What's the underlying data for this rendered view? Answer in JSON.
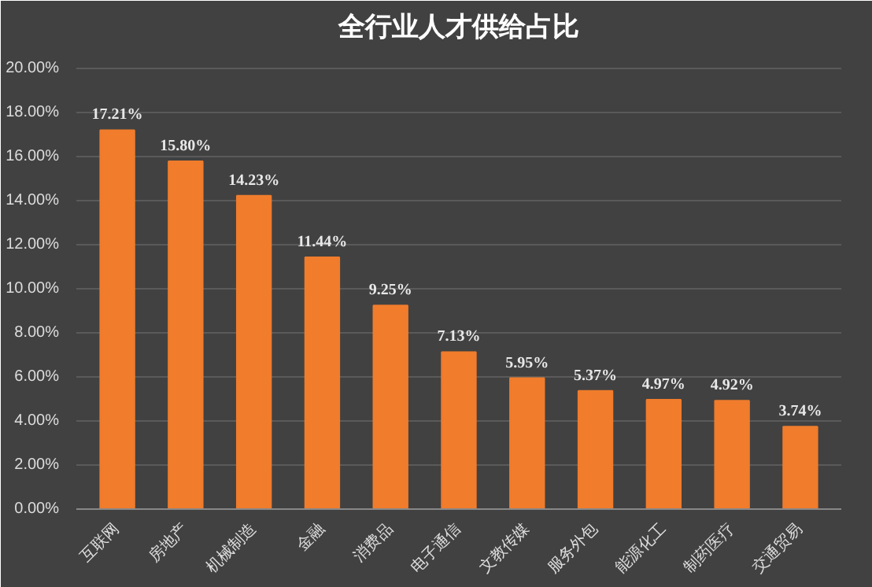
{
  "chart_data": {
    "type": "bar",
    "title": "全行业人才供给占比",
    "categories": [
      "互联网",
      "房地产",
      "机械制造",
      "金融",
      "消费品",
      "电子通信",
      "文教传媒",
      "服务外包",
      "能源化工",
      "制药医疗",
      "交通贸易"
    ],
    "values": [
      17.21,
      15.8,
      14.23,
      11.44,
      9.25,
      7.13,
      5.95,
      5.37,
      4.97,
      4.92,
      3.74
    ],
    "value_labels": [
      "17.21%",
      "15.80%",
      "14.23%",
      "11.44%",
      "9.25%",
      "7.13%",
      "5.95%",
      "5.37%",
      "4.97%",
      "4.92%",
      "3.74%"
    ],
    "color": "#f07c2c",
    "ylim": [
      0,
      20
    ],
    "yticks": [
      {
        "value": 0,
        "label": "0.00%"
      },
      {
        "value": 2,
        "label": "2.00%"
      },
      {
        "value": 4,
        "label": "4.00%"
      },
      {
        "value": 6,
        "label": "6.00%"
      },
      {
        "value": 8,
        "label": "8.00%"
      },
      {
        "value": 10,
        "label": "10.00%"
      },
      {
        "value": 12,
        "label": "12.00%"
      },
      {
        "value": 14,
        "label": "14.00%"
      },
      {
        "value": 16,
        "label": "16.00%"
      },
      {
        "value": 18,
        "label": "18.00%"
      },
      {
        "value": 20,
        "label": "20.00%"
      }
    ],
    "grid": "y"
  }
}
